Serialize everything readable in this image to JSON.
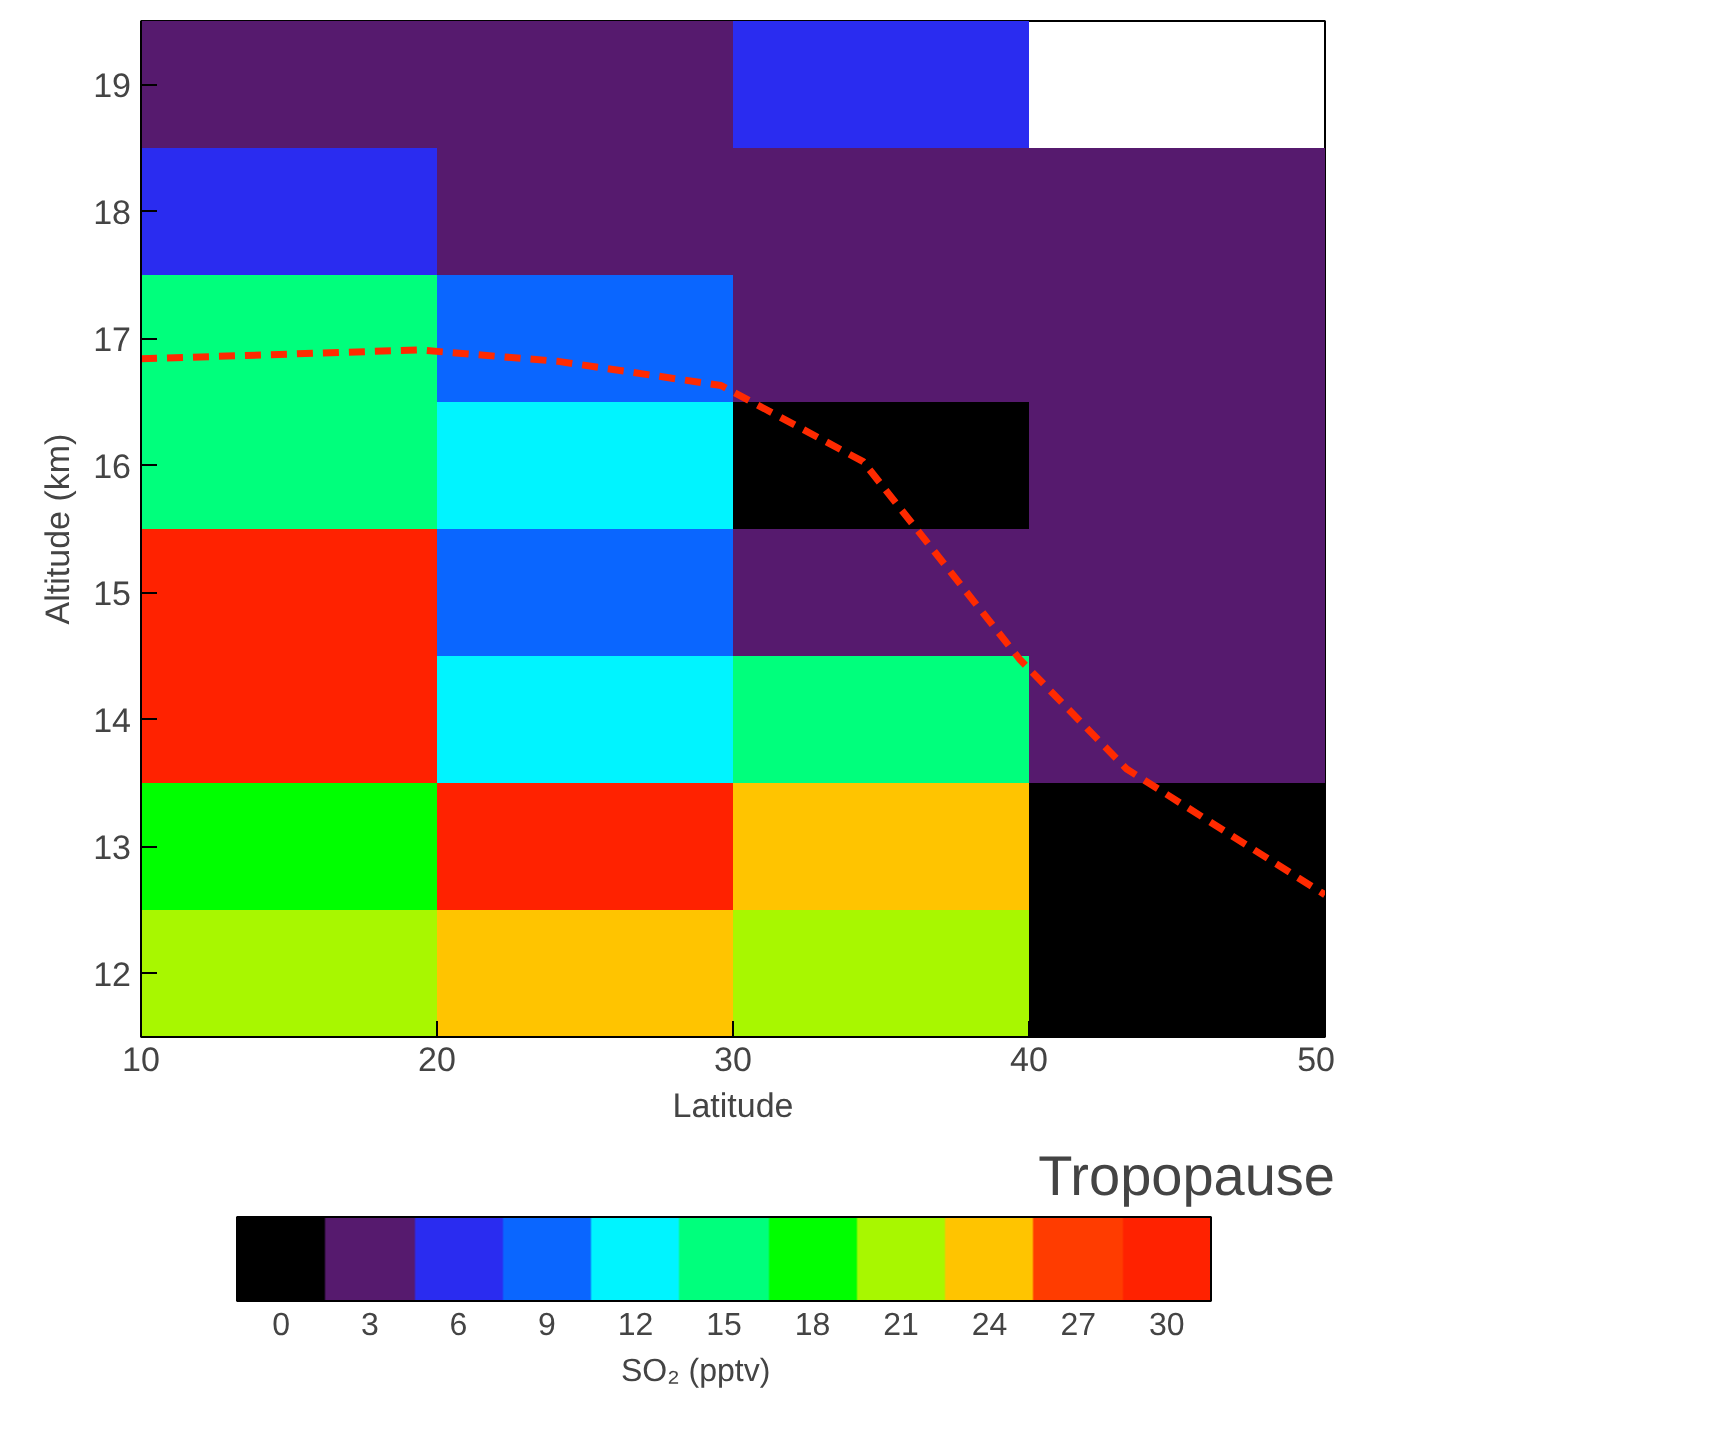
{
  "chart_data": {
    "type": "heatmap",
    "xlabel": "Latitude",
    "ylabel": "Altitude (km)",
    "clabel": "SO₂ (pptv)",
    "x": [
      15,
      25,
      35,
      45
    ],
    "y": [
      19,
      18,
      17,
      16,
      15,
      14,
      13,
      12
    ],
    "cells": [
      [
        2.5,
        2.5,
        4.5,
        null
      ],
      [
        5,
        3,
        3,
        3.5
      ],
      [
        16.5,
        9,
        2.5,
        2.5
      ],
      [
        14,
        12,
        1,
        2.5
      ],
      [
        28.5,
        9,
        4,
        2
      ],
      [
        29.5,
        11.5,
        15,
        2.5
      ],
      [
        18,
        29.5,
        22.5,
        0.5
      ],
      [
        20.5,
        23,
        19.5,
        1
      ]
    ],
    "xlim": [
      10,
      50
    ],
    "xticks": [
      10,
      20,
      30,
      40,
      50
    ],
    "ylim": [
      11.5,
      19.5
    ],
    "yticks": [
      12,
      13,
      14,
      15,
      16,
      17,
      18,
      19
    ],
    "clim": [
      -1.5,
      31.5
    ],
    "cticks": [
      0,
      3,
      6,
      9,
      12,
      15,
      18,
      21,
      24,
      27,
      30
    ],
    "colors": [
      "#000000",
      "#561a6e",
      "#2a2cf0",
      "#0a66ff",
      "#00f4ff",
      "#00ff7c",
      "#00ff00",
      "#a8f700",
      "#ffc400",
      "#ff3c00",
      "#ff2200"
    ],
    "series": [
      {
        "type": "line",
        "color": "#ff2a00",
        "line_style": "dashed",
        "x": [
          10,
          19.4,
          24.1,
          29.6,
          34.4,
          39.7,
          43.3,
          50
        ],
        "values": [
          16.84,
          16.91,
          16.82,
          16.63,
          16.03,
          14.47,
          13.61,
          12.62
        ]
      }
    ],
    "annotations": [
      "Tropopause"
    ],
    "grid": false
  }
}
